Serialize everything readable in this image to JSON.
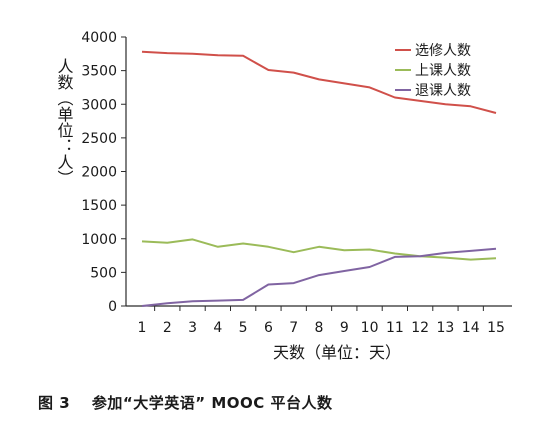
{
  "caption": {
    "figure_no": "图 3",
    "title": "参加“大学英语” MOOC 平台人数"
  },
  "chart_data": {
    "type": "line",
    "x": [
      1,
      2,
      3,
      4,
      5,
      6,
      7,
      8,
      9,
      10,
      11,
      12,
      13,
      14,
      15
    ],
    "xlabel": "天数（单位：天）",
    "ylabel": "人数（单位：人）",
    "ylim": [
      0,
      4000
    ],
    "yticks": [
      0,
      500,
      1000,
      1500,
      2000,
      2500,
      3000,
      3500,
      4000
    ],
    "grid": false,
    "legend": "top-right",
    "series": [
      {
        "name": "选修人数",
        "color": "#d0504a",
        "values": [
          3780,
          3760,
          3750,
          3730,
          3720,
          3510,
          3470,
          3370,
          3310,
          3250,
          3100,
          3050,
          3000,
          2970,
          2870
        ]
      },
      {
        "name": "上课人数",
        "color": "#9bbb59",
        "values": [
          960,
          940,
          990,
          880,
          930,
          880,
          800,
          880,
          830,
          840,
          780,
          740,
          720,
          690,
          710
        ]
      },
      {
        "name": "退课人数",
        "color": "#8064a2",
        "values": [
          0,
          40,
          70,
          80,
          90,
          320,
          340,
          460,
          520,
          580,
          730,
          740,
          790,
          820,
          850
        ]
      }
    ]
  }
}
